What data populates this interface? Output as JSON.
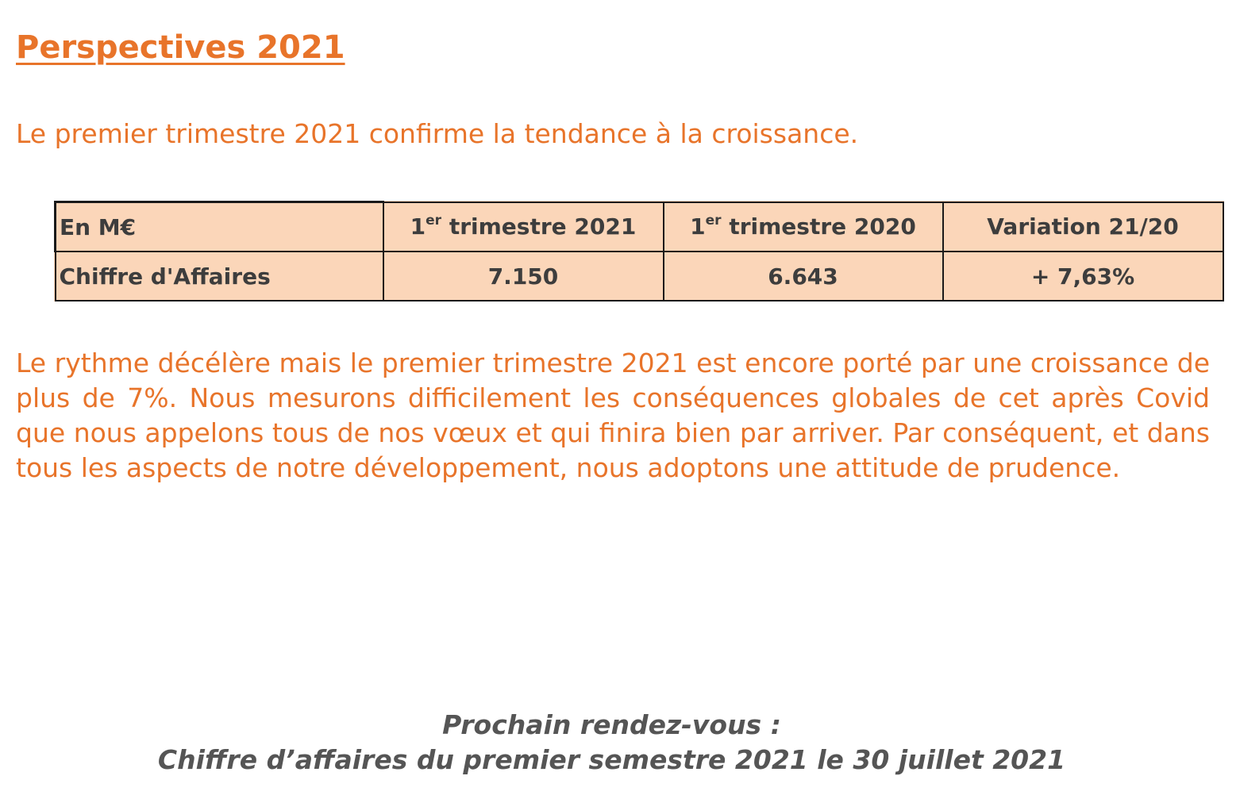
{
  "title": "Perspectives 2021",
  "intro": "Le premier trimestre 2021 confirme la tendance à la croissance.",
  "table": {
    "header": {
      "label": "En M€",
      "col1_num": "1",
      "col1_sup": "er",
      "col1_rest": " trimestre 2021",
      "col2_num": "1",
      "col2_sup": "er",
      "col2_rest": " trimestre 2020",
      "col3": "Variation 21/20"
    },
    "row": {
      "label": "Chiffre d'Affaires",
      "q1_2021": "7.150",
      "q1_2020": "6.643",
      "variation": "+ 7,63%"
    }
  },
  "body": "Le rythme décélère mais le premier trimestre 2021 est encore porté par une croissance de plus de 7%. Nous mesurons difficilement les conséquences globales de cet après Covid que nous appelons tous de nos vœux et qui finira bien par arriver. Par conséquent, et dans tous les aspects de notre développement, nous adoptons une attitude de prudence.",
  "next_meeting": {
    "line1": "Prochain rendez-vous :",
    "line2": "Chiffre d’affaires du premier semestre 2021 le 30 juillet 2021"
  },
  "colors": {
    "accent": "#e8742a",
    "table_fill": "#fbd6b9",
    "table_text": "#3d3d3d",
    "footer_text": "#555555"
  }
}
